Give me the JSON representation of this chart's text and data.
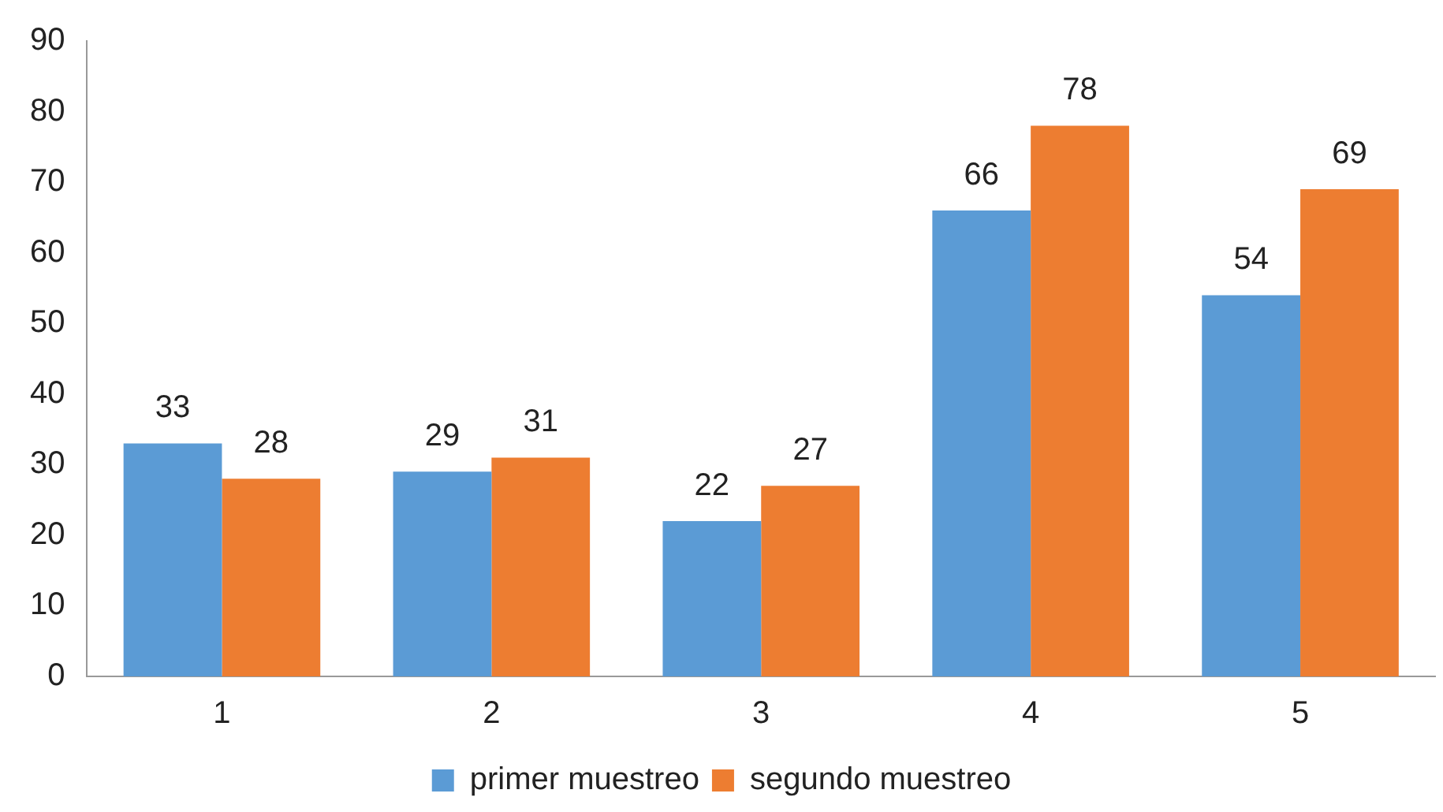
{
  "chart_data": {
    "type": "bar",
    "categories": [
      "1",
      "2",
      "3",
      "4",
      "5"
    ],
    "series": [
      {
        "name": "primer muestreo",
        "color": "#5b9bd5",
        "values": [
          33,
          29,
          22,
          66,
          54
        ]
      },
      {
        "name": "segundo muestreo",
        "color": "#ed7d31",
        "values": [
          28,
          31,
          27,
          78,
          69
        ]
      }
    ],
    "ylim": [
      0,
      90
    ],
    "yticks": [
      0,
      10,
      20,
      30,
      40,
      50,
      60,
      70,
      80,
      90
    ],
    "grid": false,
    "legend": "bottom",
    "data_labels": true
  }
}
